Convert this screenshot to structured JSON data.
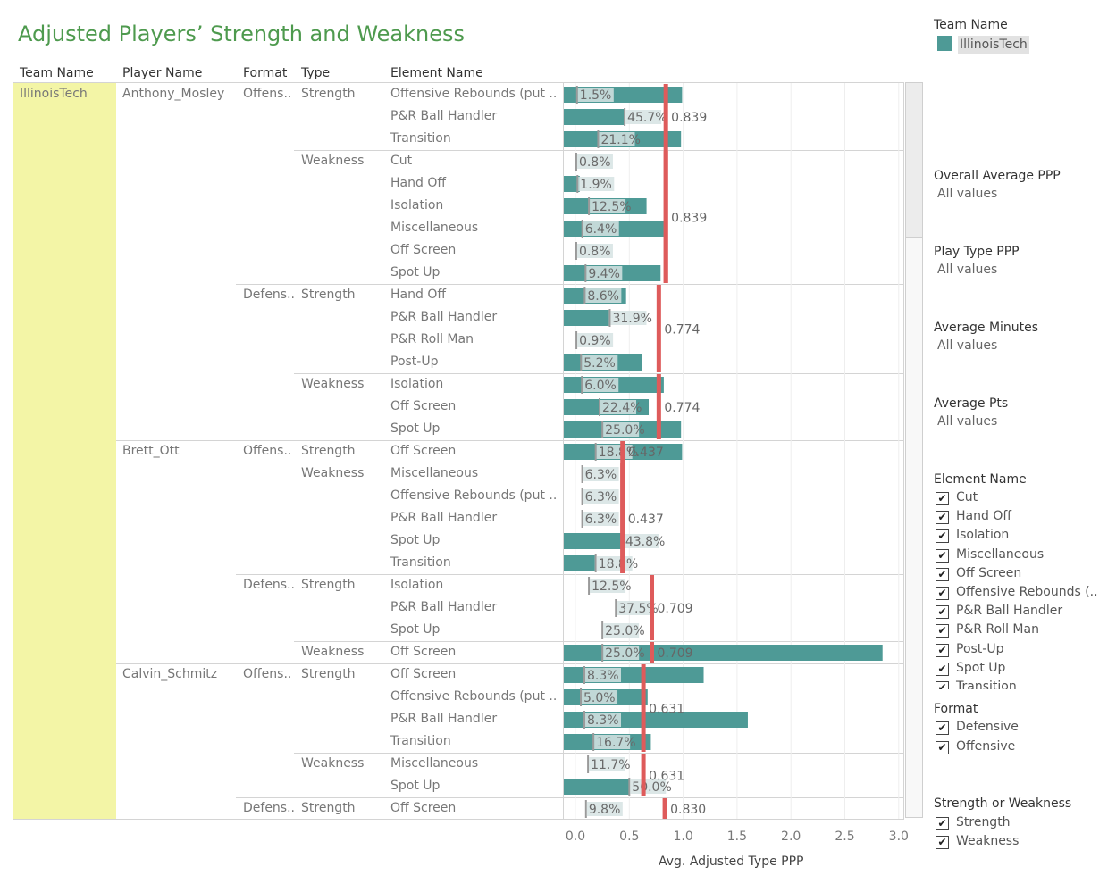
{
  "title": "Adjusted Players’ Strength and Weakness",
  "headers": {
    "team": "Team Name",
    "player": "Player Name",
    "format": "Format",
    "type": "Type",
    "element": "Element Name"
  },
  "team": "IllinoisTech",
  "legend": {
    "title": "Team Name",
    "item": "IllinoisTech",
    "color": "#4e9a96"
  },
  "colors": {
    "bar": "#4e9a96",
    "pct_bg": "#d6e3e3",
    "avg_line": "#de5b5b",
    "team_cell": "#f3f5a6"
  },
  "players": [
    {
      "name": "Anthony_Mosley",
      "groups": [
        {
          "format": "Offens..",
          "types": [
            {
              "type": "Strength",
              "rows": [
                0,
                1,
                2
              ]
            },
            {
              "type": "Weakness",
              "rows": [
                3,
                4,
                5,
                6,
                7,
                8
              ]
            }
          ]
        },
        {
          "format": "Defens..",
          "types": [
            {
              "type": "Strength",
              "rows": [
                9,
                10,
                11,
                12
              ]
            },
            {
              "type": "Weakness",
              "rows": [
                13,
                14,
                15
              ]
            }
          ]
        }
      ]
    },
    {
      "name": "Brett_Ott",
      "groups": [
        {
          "format": "Offens..",
          "types": [
            {
              "type": "Strength",
              "rows": [
                16
              ]
            },
            {
              "type": "Weakness",
              "rows": [
                17,
                18,
                19,
                20,
                21
              ]
            }
          ]
        },
        {
          "format": "Defens..",
          "types": [
            {
              "type": "Strength",
              "rows": [
                22,
                23,
                24
              ]
            },
            {
              "type": "Weakness",
              "rows": [
                25
              ]
            }
          ]
        }
      ]
    },
    {
      "name": "Calvin_Schmitz",
      "groups": [
        {
          "format": "Offens..",
          "types": [
            {
              "type": "Strength",
              "rows": [
                26,
                27,
                28,
                29
              ]
            },
            {
              "type": "Weakness",
              "rows": [
                30,
                31
              ]
            }
          ]
        },
        {
          "format": "Defens..",
          "types": [
            {
              "type": "Strength",
              "rows": [
                32
              ]
            }
          ]
        }
      ]
    }
  ],
  "chart_data": {
    "type": "bar",
    "xlabel": "Avg. Adjusted Type PPP",
    "xlim": [
      -0.1,
      3.1
    ],
    "xticks": [
      "0.0",
      "0.5",
      "1.0",
      "1.5",
      "2.0",
      "2.5",
      "3.0"
    ],
    "xtick_values": [
      0,
      0.5,
      1.0,
      1.5,
      2.0,
      2.5,
      3.0
    ],
    "rows": [
      {
        "element": "Offensive Rebounds (put ..",
        "value": 0.99,
        "pct": "1.5%",
        "pct_value": 0.015
      },
      {
        "element": "P&R Ball Handler",
        "value": 0.45,
        "pct": "45.7%",
        "pct_value": 0.457
      },
      {
        "element": "Transition",
        "value": 0.98,
        "pct": "21.1%",
        "pct_value": 0.211
      },
      {
        "element": "Cut",
        "value": 0.0,
        "pct": "0.8%",
        "pct_value": 0.008
      },
      {
        "element": "Hand Off",
        "value": 0.04,
        "pct": "1.9%",
        "pct_value": 0.019
      },
      {
        "element": "Isolation",
        "value": 0.66,
        "pct": "12.5%",
        "pct_value": 0.125
      },
      {
        "element": "Miscellaneous",
        "value": 0.82,
        "pct": "6.4%",
        "pct_value": 0.064
      },
      {
        "element": "Off Screen",
        "value": 0.0,
        "pct": "0.8%",
        "pct_value": 0.008
      },
      {
        "element": "Spot Up",
        "value": 0.79,
        "pct": "9.4%",
        "pct_value": 0.094
      },
      {
        "element": "Hand Off",
        "value": 0.47,
        "pct": "8.6%",
        "pct_value": 0.086
      },
      {
        "element": "P&R Ball Handler",
        "value": 0.31,
        "pct": "31.9%",
        "pct_value": 0.319
      },
      {
        "element": "P&R Roll Man",
        "value": 0.0,
        "pct": "0.9%",
        "pct_value": 0.009
      },
      {
        "element": "Post-Up",
        "value": 0.62,
        "pct": "5.2%",
        "pct_value": 0.052
      },
      {
        "element": "Isolation",
        "value": 0.82,
        "pct": "6.0%",
        "pct_value": 0.06
      },
      {
        "element": "Off Screen",
        "value": 0.68,
        "pct": "22.4%",
        "pct_value": 0.224
      },
      {
        "element": "Spot Up",
        "value": 0.98,
        "pct": "25.0%",
        "pct_value": 0.25
      },
      {
        "element": "Off Screen",
        "value": 0.99,
        "pct": "18.8%",
        "pct_value": 0.188
      },
      {
        "element": "Miscellaneous",
        "value": 0.0,
        "pct": "6.3%",
        "pct_value": 0.063
      },
      {
        "element": "Offensive Rebounds (put ..",
        "value": 0.0,
        "pct": "6.3%",
        "pct_value": 0.063
      },
      {
        "element": "P&R Ball Handler",
        "value": 0.0,
        "pct": "6.3%",
        "pct_value": 0.063
      },
      {
        "element": "Spot Up",
        "value": 0.43,
        "pct": "43.8%",
        "pct_value": 0.438
      },
      {
        "element": "Transition",
        "value": 0.18,
        "pct": "18.8%",
        "pct_value": 0.188
      },
      {
        "element": "Isolation",
        "value": 0.0,
        "pct": "12.5%",
        "pct_value": 0.125
      },
      {
        "element": "P&R Ball Handler",
        "value": 0.0,
        "pct": "37.5%",
        "pct_value": 0.375
      },
      {
        "element": "Spot Up",
        "value": 0.0,
        "pct": "25.0%",
        "pct_value": 0.25
      },
      {
        "element": "Off Screen",
        "value": 2.85,
        "pct": "25.0%",
        "pct_value": 0.25
      },
      {
        "element": "Off Screen",
        "value": 1.19,
        "pct": "8.3%",
        "pct_value": 0.083
      },
      {
        "element": "Offensive Rebounds (put ..",
        "value": 0.67,
        "pct": "5.0%",
        "pct_value": 0.05
      },
      {
        "element": "P&R Ball Handler",
        "value": 1.6,
        "pct": "8.3%",
        "pct_value": 0.083
      },
      {
        "element": "Transition",
        "value": 0.7,
        "pct": "16.7%",
        "pct_value": 0.167
      },
      {
        "element": "Miscellaneous",
        "value": 0.0,
        "pct": "11.7%",
        "pct_value": 0.117
      },
      {
        "element": "Spot Up",
        "value": 0.5,
        "pct": "50.0%",
        "pct_value": 0.5
      },
      {
        "element": "Off Screen",
        "value": 0.0,
        "pct": "9.8%",
        "pct_value": 0.098
      }
    ],
    "reference_lines": [
      {
        "label": "0.839",
        "value": 0.839,
        "rows": [
          0,
          8
        ],
        "label_row": 1
      },
      {
        "label": "0.839",
        "value": 0.839,
        "rows": [
          3,
          8
        ],
        "label_row": 5.5
      },
      {
        "label": "0.774",
        "value": 0.774,
        "rows": [
          9,
          12
        ],
        "label_row": 10.5
      },
      {
        "label": "0.774",
        "value": 0.774,
        "rows": [
          13,
          15
        ],
        "label_row": 14
      },
      {
        "label": "0.437",
        "value": 0.437,
        "rows": [
          16,
          21
        ],
        "label_row": 16
      },
      {
        "label": "0.437",
        "value": 0.437,
        "rows": [
          17,
          21
        ],
        "label_row": 19
      },
      {
        "label": "0.709",
        "value": 0.709,
        "rows": [
          22,
          24
        ],
        "label_row": 23
      },
      {
        "label": "0.709",
        "value": 0.709,
        "rows": [
          25,
          25
        ],
        "label_row": 25
      },
      {
        "label": "0.631",
        "value": 0.631,
        "rows": [
          26,
          29
        ],
        "label_row": 27.5
      },
      {
        "label": "0.631",
        "value": 0.631,
        "rows": [
          30,
          31
        ],
        "label_row": 30.5
      },
      {
        "label": "0.830",
        "value": 0.83,
        "rows": [
          32,
          32
        ],
        "label_row": 32
      }
    ]
  },
  "filters": [
    {
      "title": "Overall Average PPP",
      "value": "All values"
    },
    {
      "title": "Play Type PPP",
      "value": "All values"
    },
    {
      "title": "Average Minutes",
      "value": "All values"
    },
    {
      "title": "Average Pts",
      "value": "All values"
    }
  ],
  "element_filter": {
    "title": "Element Name",
    "items": [
      "Cut",
      "Hand Off",
      "Isolation",
      "Miscellaneous",
      "Off Screen",
      "Offensive Rebounds (..",
      "P&R Ball Handler",
      "P&R Roll Man",
      "Post-Up",
      "Spot Up",
      "Transition"
    ]
  },
  "format_filter": {
    "title": "Format",
    "items": [
      "Defensive",
      "Offensive"
    ]
  },
  "sw_filter": {
    "title": "Strength or Weakness",
    "items": [
      "Strength",
      "Weakness"
    ]
  },
  "check_glyph": "✔"
}
